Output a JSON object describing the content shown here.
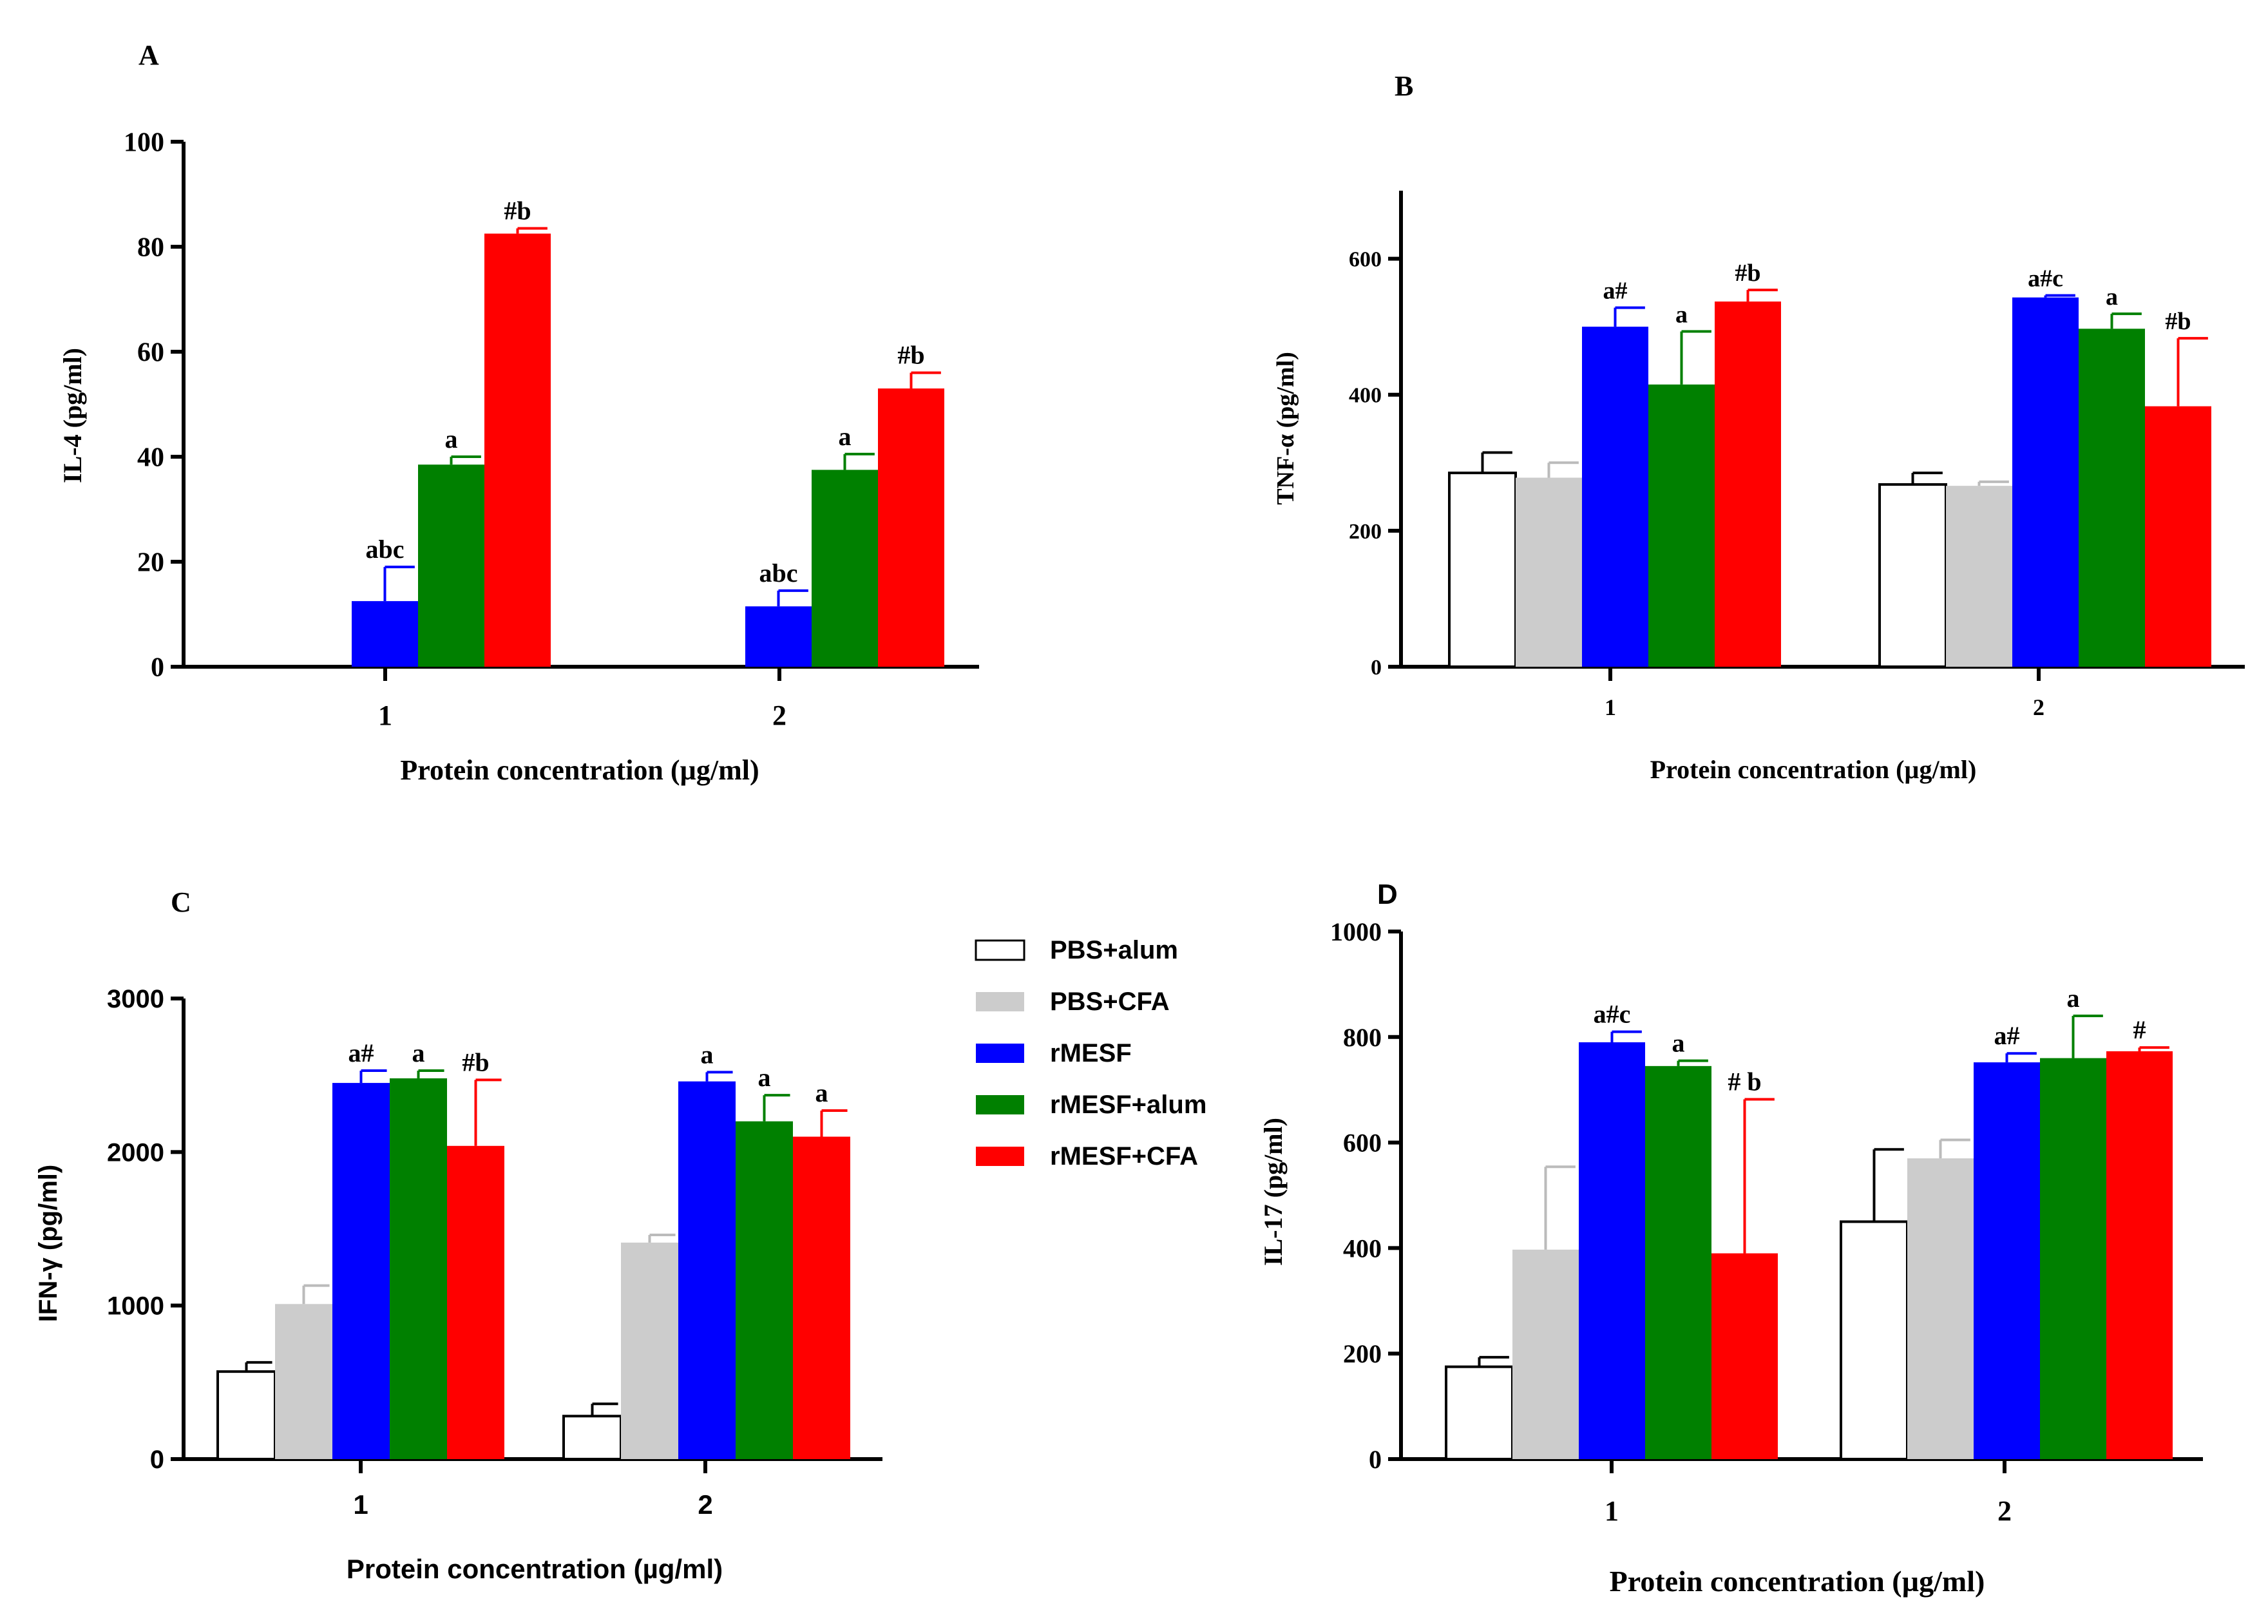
{
  "legend": {
    "entries": [
      {
        "label": "PBS+alum",
        "color": "#ffffff"
      },
      {
        "label": "PBS+CFA",
        "color": "#cccccc"
      },
      {
        "label": "rMESF",
        "color": "#0000ff"
      },
      {
        "label": "rMESF+alum",
        "color": "#008000"
      },
      {
        "label": "rMESF+CFA",
        "color": "#ff0000"
      }
    ]
  },
  "chart_data": [
    {
      "panel": "A",
      "type": "bar",
      "ylabel": "IL-4 (pg/ml)",
      "xlabel": "Protein concentration (µg/ml)",
      "ylim": [
        0,
        100
      ],
      "yticks": [
        "0",
        "20",
        "40",
        "60",
        "80",
        "100"
      ],
      "categories": [
        "1",
        "2"
      ],
      "series": [
        {
          "name": "rMESF",
          "values": [
            12.5,
            11.5
          ],
          "errors": [
            6.5,
            3.0
          ],
          "labels": [
            "abc",
            "abc"
          ]
        },
        {
          "name": "rMESF+alum",
          "values": [
            38.5,
            37.5
          ],
          "errors": [
            1.5,
            3.0
          ],
          "labels": [
            "a",
            "a"
          ]
        },
        {
          "name": "rMESF+CFA",
          "values": [
            82.5,
            53
          ],
          "errors": [
            1.0,
            3.0
          ],
          "labels": [
            "#b",
            "#b"
          ]
        }
      ]
    },
    {
      "panel": "B",
      "type": "bar",
      "ylabel": "TNF-α (pg/ml)",
      "xlabel": "Protein concentration (µg/ml)",
      "ylim": [
        0,
        700
      ],
      "yticks": [
        "0",
        "200",
        "400",
        "600"
      ],
      "categories": [
        "1",
        "2"
      ],
      "series": [
        {
          "name": "PBS+alum",
          "values": [
            285,
            268
          ],
          "errors": [
            30,
            17
          ],
          "labels": [
            "",
            ""
          ]
        },
        {
          "name": "PBS+CFA",
          "values": [
            278,
            266
          ],
          "errors": [
            22,
            6
          ],
          "labels": [
            "",
            ""
          ]
        },
        {
          "name": "rMESF",
          "values": [
            500,
            543
          ],
          "errors": [
            28,
            3
          ],
          "labels": [
            "a#",
            "a#c"
          ]
        },
        {
          "name": "rMESF+alum",
          "values": [
            415,
            497
          ],
          "errors": [
            78,
            22
          ],
          "labels": [
            "a",
            "a"
          ]
        },
        {
          "name": "rMESF+CFA",
          "values": [
            537,
            383
          ],
          "errors": [
            17,
            100
          ],
          "labels": [
            "#b",
            "#b"
          ]
        }
      ]
    },
    {
      "panel": "C",
      "type": "bar",
      "ylabel": "IFN-γ  (pg/ml)",
      "xlabel": "Protein concentration (µg/ml)",
      "ylim": [
        0,
        3000
      ],
      "yticks": [
        "0",
        "1000",
        "2000",
        "3000"
      ],
      "categories": [
        "1",
        "2"
      ],
      "series": [
        {
          "name": "PBS+alum",
          "values": [
            570,
            280
          ],
          "errors": [
            60,
            80
          ],
          "labels": [
            "",
            ""
          ]
        },
        {
          "name": "PBS+CFA",
          "values": [
            1010,
            1410
          ],
          "errors": [
            120,
            50
          ],
          "labels": [
            "",
            ""
          ]
        },
        {
          "name": "rMESF",
          "values": [
            2450,
            2460
          ],
          "errors": [
            80,
            60
          ],
          "labels": [
            "a#",
            "a"
          ]
        },
        {
          "name": "rMESF+alum",
          "values": [
            2480,
            2200
          ],
          "errors": [
            50,
            170
          ],
          "labels": [
            "a",
            "a"
          ]
        },
        {
          "name": "rMESF+CFA",
          "values": [
            2040,
            2100
          ],
          "errors": [
            430,
            170
          ],
          "labels": [
            "#b",
            "a"
          ]
        }
      ]
    },
    {
      "panel": "D",
      "type": "bar",
      "ylabel": "IL-17 (pg/ml)",
      "xlabel": "Protein concentration (µg/ml)",
      "ylim": [
        0,
        1000
      ],
      "yticks": [
        "0",
        "200",
        "400",
        "600",
        "800",
        "1000"
      ],
      "categories": [
        "1",
        "2"
      ],
      "series": [
        {
          "name": "PBS+alum",
          "values": [
            175,
            450
          ],
          "errors": [
            18,
            137
          ],
          "labels": [
            "",
            ""
          ]
        },
        {
          "name": "PBS+CFA",
          "values": [
            397,
            570
          ],
          "errors": [
            157,
            35
          ],
          "labels": [
            "",
            ""
          ]
        },
        {
          "name": "rMESF",
          "values": [
            790,
            752
          ],
          "errors": [
            20,
            17
          ],
          "labels": [
            "a#c",
            "a#"
          ]
        },
        {
          "name": "rMESF+alum",
          "values": [
            745,
            760
          ],
          "errors": [
            10,
            80
          ],
          "labels": [
            "a",
            "a"
          ]
        },
        {
          "name": "rMESF+CFA",
          "values": [
            390,
            773
          ],
          "errors": [
            292,
            7
          ],
          "labels": [
            "# b",
            "#"
          ]
        }
      ]
    }
  ]
}
